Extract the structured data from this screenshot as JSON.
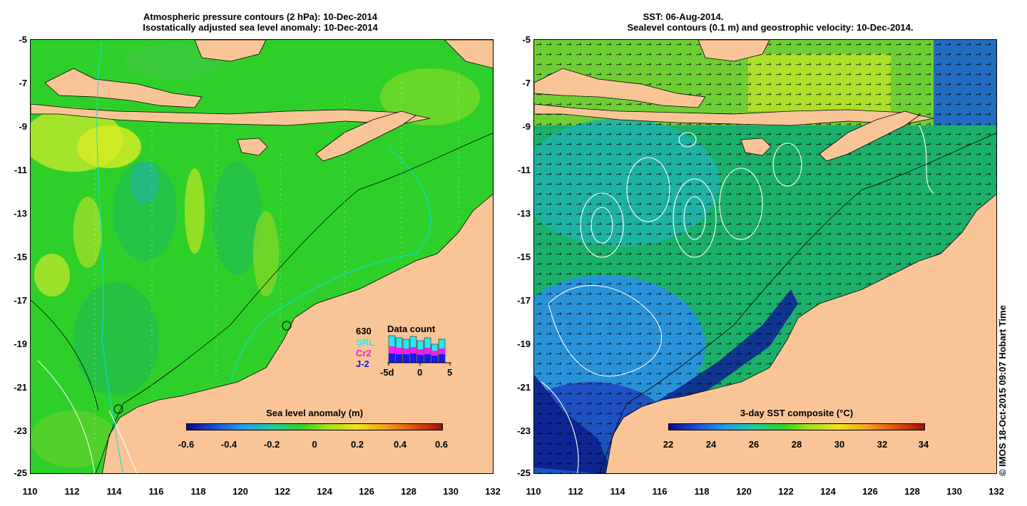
{
  "left_panel": {
    "title_line1": "Atmospheric pressure contours (2 hPa): 10-Dec-2014",
    "title_line2": "Isostatically adjusted sea level anomaly: 10-Dec-2014",
    "colorbar": {
      "title": "Sea level anomaly (m)",
      "ticks": [
        "-0.6",
        "-0.4",
        "-0.2",
        "0",
        "0.2",
        "0.4",
        "0.6"
      ]
    },
    "data_count": {
      "title": "Data count",
      "max": "630",
      "missions": [
        "SRL",
        "Cr2",
        "J-2"
      ],
      "mission_colors": [
        "#2ee6f0",
        "#f01ef0",
        "#1a1ae6"
      ],
      "axis_ticks": [
        "-5d",
        "0",
        "5"
      ]
    }
  },
  "right_panel": {
    "title_line1": "SST: 06-Aug-2014.",
    "title_line2": "Sealevel contours (0.1 m) and geostrophic velocity: 10-Dec-2014.",
    "colorbar": {
      "title": "3-day SST composite (°C)",
      "ticks": [
        "22",
        "24",
        "26",
        "28",
        "30",
        "32",
        "34"
      ]
    }
  },
  "axes": {
    "y_ticks": [
      "-5",
      "-7",
      "-9",
      "-11",
      "-13",
      "-15",
      "-17",
      "-19",
      "-21",
      "-23",
      "-25"
    ],
    "x_ticks": [
      "110",
      "112",
      "114",
      "116",
      "118",
      "120",
      "122",
      "124",
      "126",
      "128",
      "130",
      "132"
    ]
  },
  "copyright": "© IMOS 18-Oct-2015 09:07 Hobart Time",
  "colors": {
    "land": "#f9c597",
    "sla_background": "#2fcf2a",
    "sst_background": "#1bb06a",
    "contour": "#00e0e8"
  }
}
